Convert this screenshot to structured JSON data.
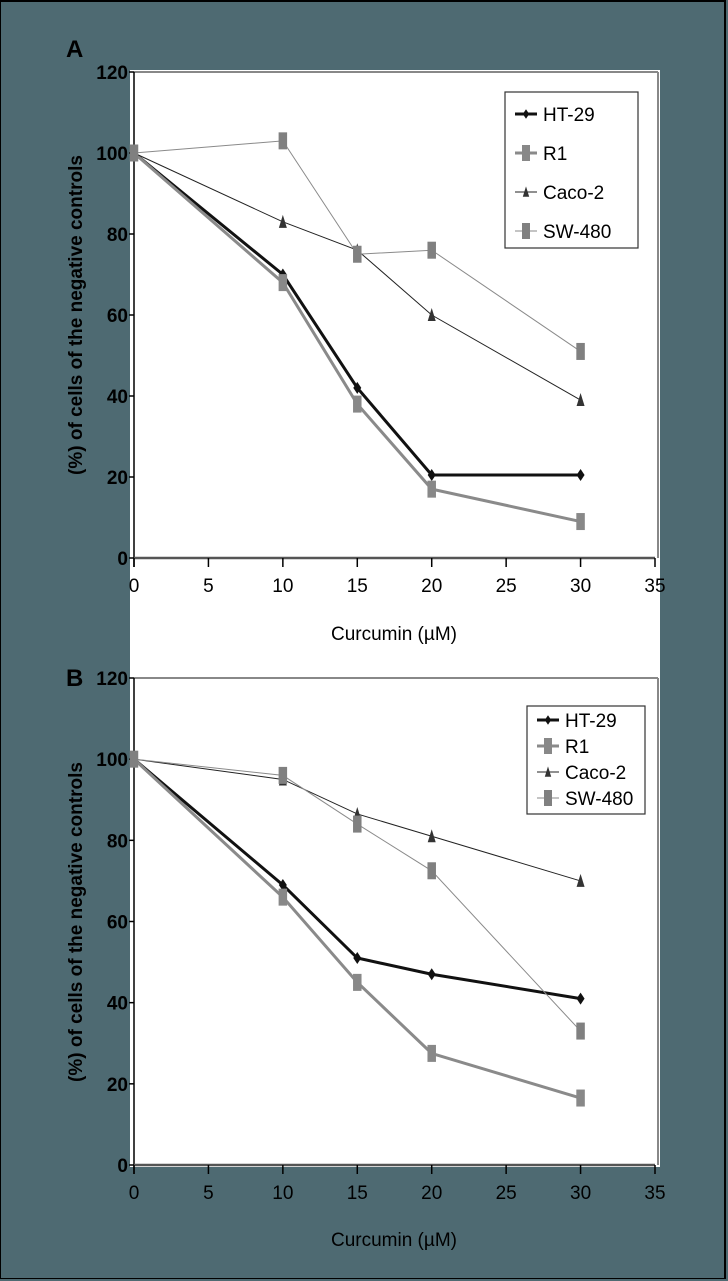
{
  "chart_data": [
    {
      "panel": "A",
      "type": "line",
      "xlabel": "Curcumin (µM)",
      "ylabel": "(%) of cells of the negative controls",
      "xlim": [
        0,
        35
      ],
      "ylim": [
        0,
        120
      ],
      "xticks": [
        0,
        5,
        10,
        15,
        20,
        25,
        30,
        35
      ],
      "yticks": [
        0,
        20,
        40,
        60,
        80,
        100,
        120
      ],
      "grid": false,
      "legend_position": "upper right",
      "x": [
        0,
        10,
        15,
        20,
        30
      ],
      "series": [
        {
          "name": "HT-29",
          "values": [
            100,
            70,
            42,
            20.5,
            20.5
          ],
          "color": "#111111",
          "marker": "diamond"
        },
        {
          "name": "R1",
          "values": [
            100,
            68,
            38,
            17,
            9
          ],
          "color": "#888888",
          "marker": "square"
        },
        {
          "name": "Caco-2",
          "values": [
            100,
            83,
            76,
            60,
            39
          ],
          "color": "#333333",
          "marker": "triangle"
        },
        {
          "name": "SW-480",
          "values": [
            100,
            103,
            75,
            76,
            51
          ],
          "color": "#808080",
          "marker": "square"
        }
      ]
    },
    {
      "panel": "B",
      "type": "line",
      "xlabel": "Curcumin (µM)",
      "ylabel": "(%) of cells of the negative controls",
      "xlim": [
        0,
        35
      ],
      "ylim": [
        0,
        120
      ],
      "xticks": [
        0,
        5,
        10,
        15,
        20,
        25,
        30,
        35
      ],
      "yticks": [
        0,
        20,
        40,
        60,
        80,
        100,
        120
      ],
      "grid": false,
      "legend_position": "upper right",
      "x": [
        0,
        10,
        15,
        20,
        30
      ],
      "series": [
        {
          "name": "HT-29",
          "values": [
            100,
            69,
            51,
            47,
            41
          ],
          "color": "#111111",
          "marker": "diamond"
        },
        {
          "name": "R1",
          "values": [
            100,
            66,
            45,
            27.5,
            16.5
          ],
          "color": "#888888",
          "marker": "square"
        },
        {
          "name": "Caco-2",
          "values": [
            100,
            95,
            86.5,
            81,
            70
          ],
          "color": "#333333",
          "marker": "triangle"
        },
        {
          "name": "SW-480",
          "values": [
            100,
            96,
            84,
            72.5,
            33
          ],
          "color": "#808080",
          "marker": "square"
        }
      ]
    }
  ],
  "panels": {
    "a": {
      "letter": "A",
      "xlabel": "Curcumin (µM)",
      "ylabel": "(%) of cells of the negative controls"
    },
    "b": {
      "letter": "B",
      "xlabel": "Curcumin (µM)",
      "ylabel": "(%) of cells of the negative controls"
    }
  },
  "legend": [
    "HT-29",
    "R1",
    "Caco-2",
    "SW-480"
  ],
  "colors": {
    "background": "#4e6a72",
    "plot": "#ffffff"
  }
}
